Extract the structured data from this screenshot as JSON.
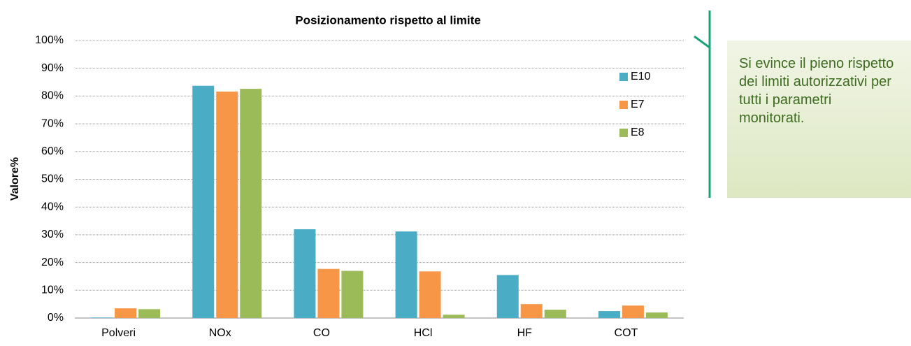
{
  "chart_data": {
    "type": "bar",
    "title": "Posizionamento rispetto al limite",
    "y_label": "Valore%",
    "categories": [
      "Polveri",
      "NOx",
      "CO",
      "HCl",
      "HF",
      "COT"
    ],
    "series": [
      {
        "name": "E10",
        "color": "#4bacc6",
        "values": [
          0.2,
          83.7,
          32,
          31.2,
          15.5,
          2.5
        ]
      },
      {
        "name": "E7",
        "color": "#f79646",
        "values": [
          3.5,
          81.6,
          17.7,
          16.8,
          5,
          4.5
        ]
      },
      {
        "name": "E8",
        "color": "#9bbb59",
        "values": [
          3.2,
          82.6,
          17,
          1.2,
          3,
          2
        ]
      }
    ],
    "ylim": [
      0,
      100
    ],
    "yticks": [
      {
        "value": 0,
        "label": "0%"
      },
      {
        "value": 10,
        "label": "10%"
      },
      {
        "value": 20,
        "label": "20%"
      },
      {
        "value": 30,
        "label": "30%"
      },
      {
        "value": 40,
        "label": "40%"
      },
      {
        "value": 50,
        "label": "50%"
      },
      {
        "value": 60,
        "label": "60%"
      },
      {
        "value": 70,
        "label": "70%"
      },
      {
        "value": 80,
        "label": "80%"
      },
      {
        "value": 90,
        "label": "90%"
      },
      {
        "value": 100,
        "label": "100%"
      }
    ],
    "grid": true,
    "legend": "upper right"
  },
  "callout": {
    "text": "Si evince il pieno rispetto dei limiti autorizzativi per tutti i parametri monitorati."
  }
}
